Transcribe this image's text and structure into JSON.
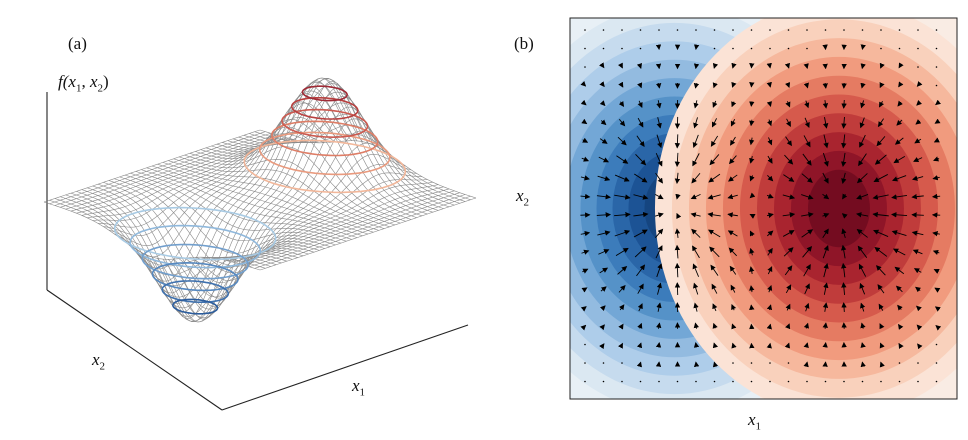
{
  "panel_a": {
    "label": "(a)",
    "z_label": {
      "text": "f(",
      "var1": "x",
      "sub1": "1",
      "sep": ", ",
      "var2": "x",
      "sub2": "2",
      "close": ")"
    },
    "x1_label": {
      "var": "x",
      "sub": "1"
    },
    "x2_label": {
      "var": "x",
      "sub": "2"
    }
  },
  "panel_b": {
    "label": "(b)",
    "x1_label": {
      "var": "x",
      "sub": "1"
    },
    "x2_label": {
      "var": "x",
      "sub": "2"
    }
  },
  "colors": {
    "negative": "#2b64a8",
    "positive": "#b2182b",
    "wire": "#8a8a8a",
    "background_left": "#e8f0f6",
    "background_right": "#f9ece4"
  },
  "chart_data": [
    {
      "type": "surface",
      "description_of_function": "f(x1,x2) = gaussian peak at positive x1 minus gaussian well at negative x1",
      "extrema": [
        {
          "kind": "minimum",
          "x1": -0.6,
          "x2": 0.0
        },
        {
          "kind": "maximum",
          "x1": 0.6,
          "x2": 0.0
        }
      ]
    },
    {
      "type": "contour-quiver",
      "xlim": [
        -1,
        1
      ],
      "ylim": [
        -1,
        1
      ],
      "extrema": [
        {
          "kind": "minimum",
          "x1": -0.46,
          "x2": 0.0
        },
        {
          "kind": "maximum",
          "x1": 0.39,
          "x2": 0.0
        }
      ]
    }
  ]
}
